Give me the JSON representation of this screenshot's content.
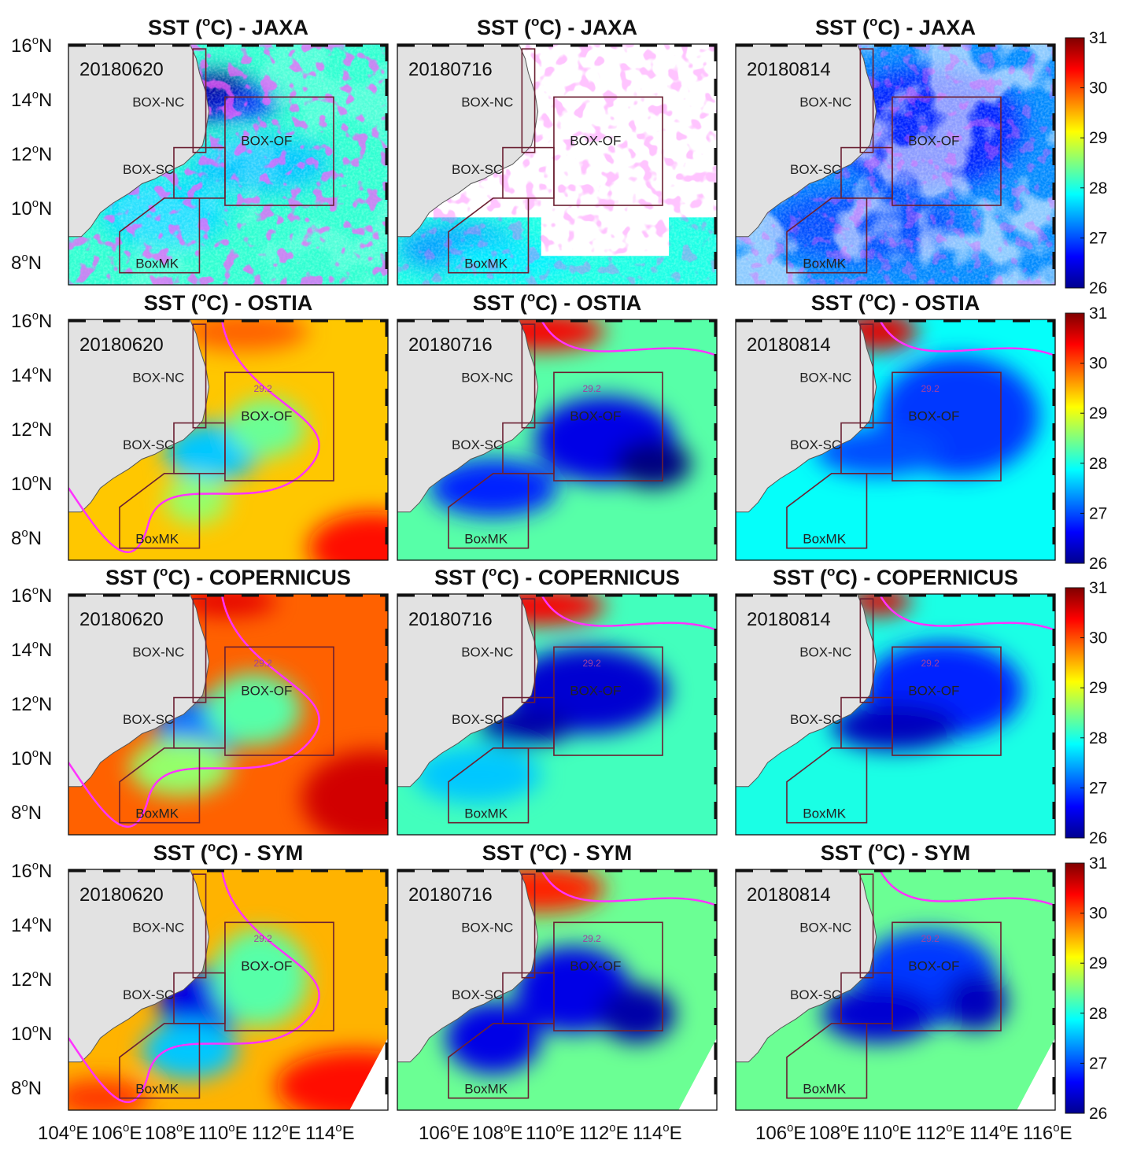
{
  "rows": [
    {
      "title_pre": "SST (",
      "title_sup": "o",
      "title_post": "C) - JAXA",
      "kind": "jaxa"
    },
    {
      "title_pre": "SST (",
      "title_sup": "o",
      "title_post": "C) - OSTIA",
      "kind": "ostia"
    },
    {
      "title_pre": "SST (",
      "title_sup": "o",
      "title_post": "C) - COPERNICUS",
      "kind": "copernicus"
    },
    {
      "title_pre": "SST (",
      "title_sup": "o",
      "title_post": "C) - SYM",
      "kind": "sym"
    }
  ],
  "dates": [
    "20180620",
    "20180716",
    "20180814"
  ],
  "boxes": [
    "BOX-NC",
    "BOX-OF",
    "BOX-SC",
    "BoxMK"
  ],
  "contour_label": "29.2",
  "lat_labels": [
    {
      "num": "16",
      "sup": "o",
      "dir": "N"
    },
    {
      "num": "14",
      "sup": "o",
      "dir": "N"
    },
    {
      "num": "12",
      "sup": "o",
      "dir": "N"
    },
    {
      "num": "10",
      "sup": "o",
      "dir": "N"
    },
    {
      "num": "8",
      "sup": "o",
      "dir": "N"
    }
  ],
  "lon_labels": [
    [
      "104",
      "106",
      "108",
      "110",
      "112",
      "114"
    ],
    [
      "106",
      "108",
      "110",
      "112",
      "114"
    ],
    [
      "106",
      "108",
      "110",
      "112",
      "114",
      "116"
    ]
  ],
  "lon_unit": "E",
  "colorbar": {
    "ticks": [
      "31",
      "30",
      "29",
      "28",
      "27",
      "26"
    ],
    "min": 26,
    "max": 31,
    "colormap": "jet"
  },
  "colors": {
    "land": "#e2e2e2",
    "box_line": "#6b2032",
    "contour": "#ff33ff",
    "cloud_mask": "#ffffff"
  },
  "chart_data": {
    "type": "heatmap",
    "variable": "SST (oC)",
    "products": [
      "JAXA",
      "OSTIA",
      "COPERNICUS",
      "SYM"
    ],
    "dates": [
      "20180620",
      "20180716",
      "20180814"
    ],
    "color_range": [
      26,
      31
    ],
    "contour_level": 29.2,
    "lat_ticks": [
      16,
      14,
      12,
      10,
      8
    ],
    "lon_ticks": [
      104,
      106,
      108,
      110,
      112,
      114,
      116
    ],
    "regions": [
      "BOX-NC",
      "BOX-OF",
      "BOX-SC",
      "BoxMK"
    ]
  }
}
